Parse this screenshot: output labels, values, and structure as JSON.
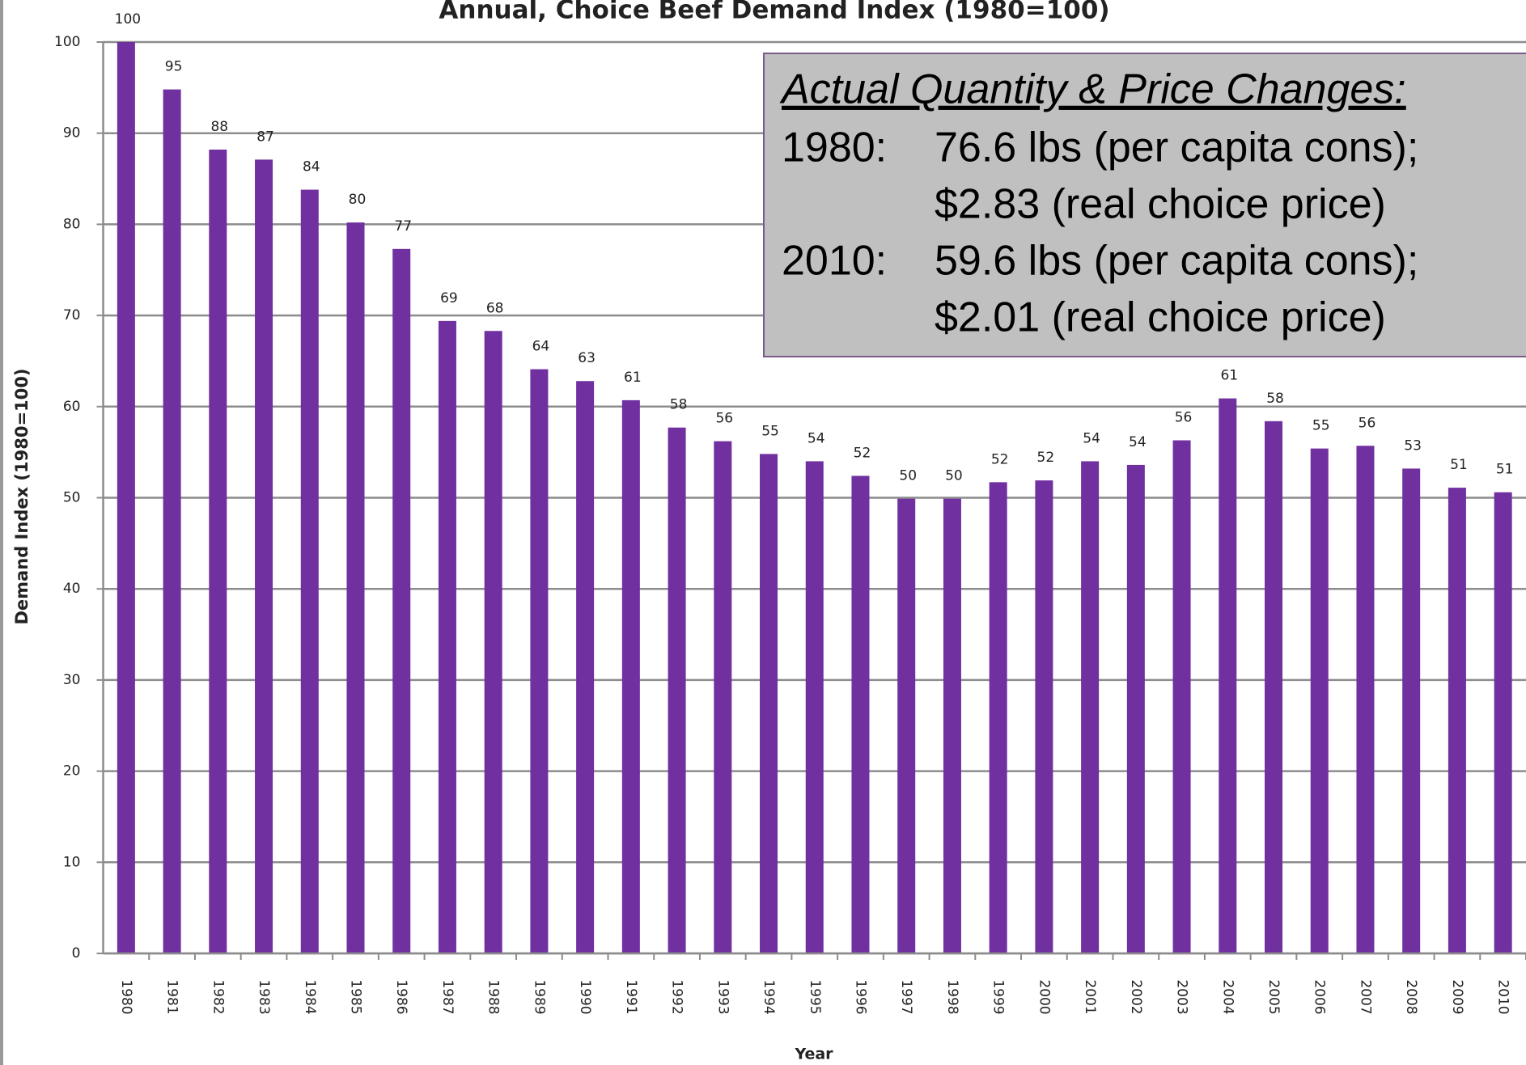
{
  "chart_data": {
    "type": "bar",
    "title": "Annual, Choice Beef Demand Index (1980=100)",
    "x_label": "Year",
    "y_label": "Demand Index (1980=100)",
    "categories": [
      "1980",
      "1981",
      "1982",
      "1983",
      "1984",
      "1985",
      "1986",
      "1987",
      "1988",
      "1989",
      "1990",
      "1991",
      "1992",
      "1993",
      "1994",
      "1995",
      "1996",
      "1997",
      "1998",
      "1999",
      "2000",
      "2001",
      "2002",
      "2003",
      "2004",
      "2005",
      "2006",
      "2007",
      "2008",
      "2009",
      "2010"
    ],
    "values": [
      100,
      94.8,
      88.2,
      87.1,
      83.8,
      80.2,
      77.3,
      69.4,
      68.3,
      64.1,
      62.8,
      60.7,
      57.7,
      56.2,
      54.8,
      54.0,
      52.4,
      49.9,
      49.9,
      51.7,
      51.9,
      54.0,
      53.6,
      56.3,
      60.9,
      58.4,
      55.4,
      55.7,
      53.2,
      51.1,
      50.6
    ],
    "value_labels": [
      "100",
      "95",
      "88",
      "87",
      "84",
      "80",
      "77",
      "69",
      "68",
      "64",
      "63",
      "61",
      "58",
      "56",
      "55",
      "54",
      "52",
      "50",
      "50",
      "52",
      "52",
      "54",
      "54",
      "56",
      "61",
      "58",
      "55",
      "56",
      "53",
      "51",
      "51"
    ],
    "color": "#7030a0",
    "ylim": [
      0,
      100
    ],
    "yticks": [
      0,
      10,
      20,
      30,
      40,
      50,
      60,
      70,
      80,
      90,
      100
    ],
    "grid": true,
    "annotation": {
      "title": "Actual Quantity & Price Changes:",
      "entries": [
        {
          "year": "1980:",
          "lines": [
            "76.6 lbs (per capita cons);",
            "$2.83 (real choice price)"
          ]
        },
        {
          "year": "2010:",
          "lines": [
            "59.6 lbs (per capita cons);",
            "$2.01 (real choice price)"
          ]
        }
      ]
    }
  }
}
